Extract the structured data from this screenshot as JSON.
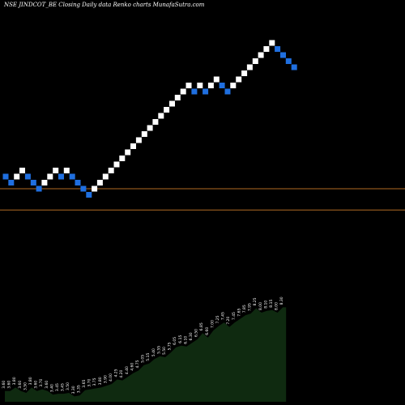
{
  "header": {
    "title": "NSE JINDCOT_BE Closing Daily data  Renko  charts MunafaSutra.com"
  },
  "chart_data": {
    "type": "renko",
    "title": "NSE JINDCOT_BE Closing Daily data  Renko  charts MunafaSutra.com",
    "price_range": [
      2.0,
      9.0
    ],
    "reference_lines": [
      3.6,
      2.9
    ],
    "bricks": [
      {
        "price": 4.0,
        "dir": "down"
      },
      {
        "price": 3.8,
        "dir": "down"
      },
      {
        "price": 4.0,
        "dir": "up"
      },
      {
        "price": 4.2,
        "dir": "up"
      },
      {
        "price": 4.0,
        "dir": "down"
      },
      {
        "price": 3.8,
        "dir": "down"
      },
      {
        "price": 3.6,
        "dir": "down"
      },
      {
        "price": 3.8,
        "dir": "up"
      },
      {
        "price": 4.0,
        "dir": "up"
      },
      {
        "price": 4.2,
        "dir": "up"
      },
      {
        "price": 4.0,
        "dir": "down"
      },
      {
        "price": 4.2,
        "dir": "up"
      },
      {
        "price": 4.0,
        "dir": "down"
      },
      {
        "price": 3.8,
        "dir": "down"
      },
      {
        "price": 3.6,
        "dir": "down"
      },
      {
        "price": 3.4,
        "dir": "down"
      },
      {
        "price": 3.6,
        "dir": "up"
      },
      {
        "price": 3.8,
        "dir": "up"
      },
      {
        "price": 4.0,
        "dir": "up"
      },
      {
        "price": 4.2,
        "dir": "up"
      },
      {
        "price": 4.4,
        "dir": "up"
      },
      {
        "price": 4.6,
        "dir": "up"
      },
      {
        "price": 4.8,
        "dir": "up"
      },
      {
        "price": 5.0,
        "dir": "up"
      },
      {
        "price": 5.2,
        "dir": "up"
      },
      {
        "price": 5.4,
        "dir": "up"
      },
      {
        "price": 5.6,
        "dir": "up"
      },
      {
        "price": 5.8,
        "dir": "up"
      },
      {
        "price": 6.0,
        "dir": "up"
      },
      {
        "price": 6.2,
        "dir": "up"
      },
      {
        "price": 6.4,
        "dir": "up"
      },
      {
        "price": 6.6,
        "dir": "up"
      },
      {
        "price": 6.8,
        "dir": "up"
      },
      {
        "price": 7.0,
        "dir": "up"
      },
      {
        "price": 6.8,
        "dir": "down"
      },
      {
        "price": 7.0,
        "dir": "up"
      },
      {
        "price": 6.8,
        "dir": "down"
      },
      {
        "price": 7.0,
        "dir": "up"
      },
      {
        "price": 7.2,
        "dir": "up"
      },
      {
        "price": 7.0,
        "dir": "down"
      },
      {
        "price": 6.8,
        "dir": "down"
      },
      {
        "price": 7.0,
        "dir": "up"
      },
      {
        "price": 7.2,
        "dir": "up"
      },
      {
        "price": 7.4,
        "dir": "up"
      },
      {
        "price": 7.6,
        "dir": "up"
      },
      {
        "price": 7.8,
        "dir": "up"
      },
      {
        "price": 8.0,
        "dir": "up"
      },
      {
        "price": 8.2,
        "dir": "up"
      },
      {
        "price": 8.4,
        "dir": "up"
      },
      {
        "price": 8.2,
        "dir": "down"
      },
      {
        "price": 8.0,
        "dir": "down"
      },
      {
        "price": 7.8,
        "dir": "down"
      },
      {
        "price": 7.6,
        "dir": "down"
      }
    ],
    "price_labels": [
      "3.60",
      "3.60",
      "3.80",
      "3.60",
      "3.50",
      "3.80",
      "3.60",
      "3.70",
      "3.60",
      "3.40",
      "3.45",
      "3.45",
      "3.50",
      "3.30",
      "3.35",
      "3.65",
      "3.70",
      "3.75",
      "3.80",
      "3.90",
      "4.00",
      "4.25",
      "4.20",
      "4.40",
      "4.60",
      "4.75",
      "5.05",
      "5.15",
      "5.40",
      "5.55",
      "5.50",
      "5.75",
      "6.05",
      "6.15",
      "6.10",
      "6.30",
      "6.50",
      "6.85",
      "6.60",
      "7.00",
      "7.25",
      "7.45",
      "7.20",
      "7.45",
      "7.65",
      "7.85",
      "7.95",
      "8.25",
      "8.00",
      "8.10",
      "8.15",
      "8.00",
      "8.30"
    ],
    "colors": {
      "background": "#000000",
      "up_brick": "#ffffff",
      "down_brick": "#1f6fe0",
      "reference_line": "#b06a22",
      "volume_area": "#0f2a10",
      "label": "#ffffff"
    }
  }
}
